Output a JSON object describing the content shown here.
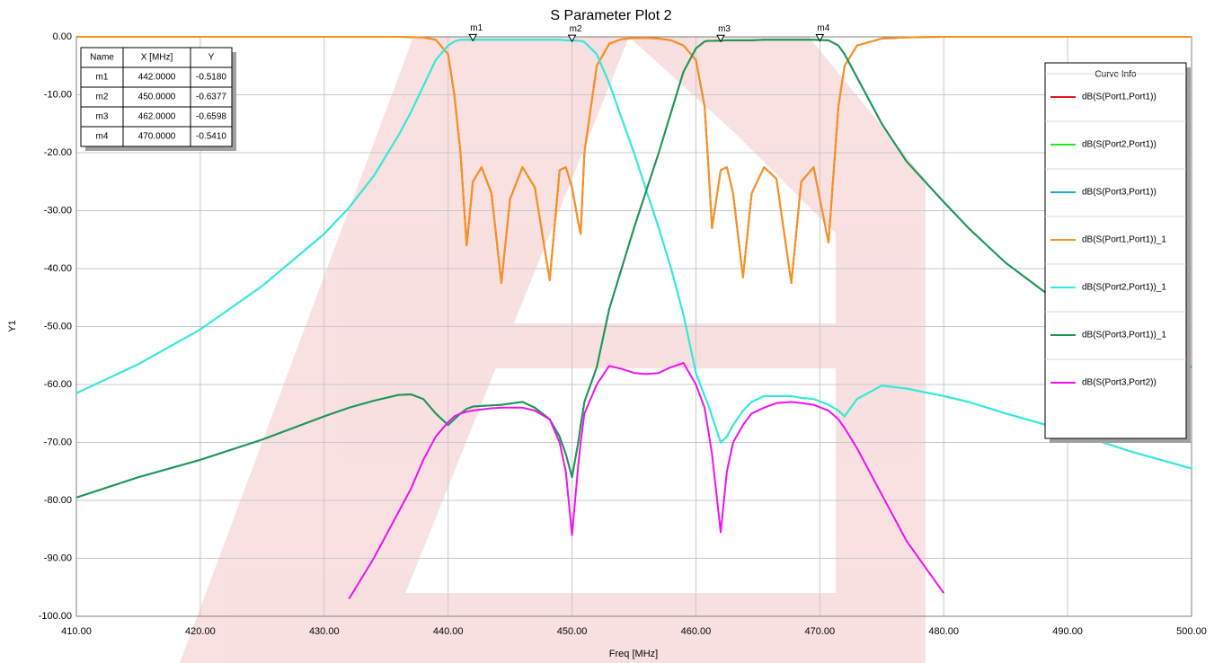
{
  "chart_data": {
    "type": "line",
    "title": "S Parameter Plot 2",
    "x_label": "Freq [MHz]",
    "y_label": "Y1",
    "xlim": [
      410,
      500
    ],
    "ylim": [
      -100,
      0
    ],
    "xticks": [
      {
        "value": 410,
        "label": "410.00"
      },
      {
        "value": 420,
        "label": "420.00"
      },
      {
        "value": 430,
        "label": "430.00"
      },
      {
        "value": 440,
        "label": "440.00"
      },
      {
        "value": 450,
        "label": "450.00"
      },
      {
        "value": 460,
        "label": "460.00"
      },
      {
        "value": 470,
        "label": "470.00"
      },
      {
        "value": 480,
        "label": "480.00"
      },
      {
        "value": 490,
        "label": "490.00"
      },
      {
        "value": 500,
        "label": "500.00"
      }
    ],
    "yticks": [
      {
        "value": 0,
        "label": "0.00"
      },
      {
        "value": -10,
        "label": "-10.00"
      },
      {
        "value": -20,
        "label": "-20.00"
      },
      {
        "value": -30,
        "label": "-30.00"
      },
      {
        "value": -40,
        "label": "-40.00"
      },
      {
        "value": -50,
        "label": "-50.00"
      },
      {
        "value": -60,
        "label": "-60.00"
      },
      {
        "value": -70,
        "label": "-70.00"
      },
      {
        "value": -80,
        "label": "-80.00"
      },
      {
        "value": -90,
        "label": "-90.00"
      },
      {
        "value": -100,
        "label": "-100.00"
      }
    ],
    "grid": true,
    "legend_title": "Curve Info",
    "legend_position": "right",
    "x": [
      410,
      415,
      420,
      425,
      430,
      432,
      434,
      436,
      437,
      438,
      439,
      440,
      440.5,
      441,
      441.5,
      442,
      442.7,
      443.5,
      444.3,
      445,
      446,
      447,
      448.2,
      449,
      449.5,
      450,
      450.5,
      450.7,
      451,
      452,
      453,
      454,
      455,
      456,
      457,
      458,
      459,
      460,
      460.7,
      461,
      461.3,
      462,
      462.5,
      463,
      463.8,
      464.5,
      465.5,
      466.5,
      467.7,
      468.5,
      469.5,
      470.7,
      471.5,
      472,
      473,
      475,
      477,
      480,
      482,
      485,
      490,
      495,
      500
    ],
    "series": [
      {
        "name": "dB(S(Port1,Port1))",
        "color": "#e8141c",
        "values": [
          0,
          0,
          0,
          0,
          0,
          0,
          0,
          0,
          -0.05,
          -0.1,
          -0.5,
          -3,
          -10,
          -20,
          -36,
          -25,
          -22.5,
          -27,
          -42.5,
          -28,
          -22.5,
          -26,
          -42,
          -23,
          -22.5,
          -26,
          -32,
          -34,
          -20,
          -5,
          -1.2,
          -0.4,
          -0.2,
          -0.2,
          -0.3,
          -0.6,
          -1.5,
          -4,
          -12,
          -22,
          -33,
          -23,
          -22.5,
          -27,
          -41.5,
          -27,
          -22.5,
          -24.5,
          -42.5,
          -25,
          -22.5,
          -35.5,
          -12,
          -5,
          -1.5,
          -0.3,
          -0.1,
          0,
          0,
          0,
          0,
          0,
          0
        ]
      },
      {
        "name": "dB(S(Port2,Port1))",
        "color": "#22e822",
        "values": [
          -61.5,
          -56.5,
          -50.5,
          -43,
          -34,
          -29.5,
          -24,
          -17,
          -13,
          -8.5,
          -4,
          -1.5,
          -0.8,
          -0.5,
          -0.5,
          -0.5,
          -0.5,
          -0.5,
          -0.5,
          -0.5,
          -0.5,
          -0.5,
          -0.5,
          -0.5,
          -0.6,
          -0.6,
          -0.7,
          -0.7,
          -0.9,
          -3,
          -8,
          -14,
          -20,
          -26.5,
          -33,
          -40,
          -48,
          -58,
          -62,
          -63.5,
          -65.5,
          -70,
          -69,
          -67,
          -64.5,
          -63,
          -62,
          -62,
          -62,
          -62.3,
          -62.5,
          -63.5,
          -64.5,
          -65.5,
          -62.5,
          -60.2,
          -60.7,
          -62,
          -63,
          -65,
          -68,
          -71.5,
          -74.5
        ]
      },
      {
        "name": "dB(S(Port3,Port1))",
        "color": "#20a8d0",
        "values": [
          -79.5,
          -76,
          -73,
          -69.5,
          -65.5,
          -64,
          -62.8,
          -61.8,
          -61.7,
          -62.5,
          -65,
          -67,
          -66,
          -65,
          -64.2,
          -63.8,
          -63.7,
          -63.6,
          -63.5,
          -63.3,
          -63,
          -64,
          -66,
          -69,
          -72,
          -76,
          -70,
          -67,
          -63,
          -57,
          -47,
          -40,
          -33,
          -26.5,
          -20,
          -13,
          -6,
          -2,
          -0.8,
          -0.7,
          -0.7,
          -0.66,
          -0.6,
          -0.6,
          -0.6,
          -0.6,
          -0.5,
          -0.5,
          -0.5,
          -0.5,
          -0.5,
          -0.6,
          -1.5,
          -3,
          -7,
          -15,
          -21.5,
          -28.5,
          -33,
          -39,
          -47,
          -53,
          -57
        ]
      },
      {
        "name": "dB(S(Port1,Port1))_1",
        "color": "#f7941e",
        "values": [
          0,
          0,
          0,
          0,
          0,
          0,
          0,
          0,
          -0.05,
          -0.1,
          -0.5,
          -3,
          -10,
          -20,
          -36,
          -25,
          -22.5,
          -27,
          -42.5,
          -28,
          -22.5,
          -26,
          -42,
          -23,
          -22.5,
          -26,
          -32,
          -34,
          -20,
          -5,
          -1.2,
          -0.4,
          -0.2,
          -0.2,
          -0.3,
          -0.6,
          -1.5,
          -4,
          -12,
          -22,
          -33,
          -23,
          -22.5,
          -27,
          -41.5,
          -27,
          -22.5,
          -24.5,
          -42.5,
          -25,
          -22.5,
          -35.5,
          -12,
          -5,
          -1.5,
          -0.3,
          -0.1,
          0,
          0,
          0,
          0,
          0,
          0
        ]
      },
      {
        "name": "dB(S(Port2,Port1))_1",
        "color": "#33e8e8",
        "values": [
          -61.5,
          -56.5,
          -50.5,
          -43,
          -34,
          -29.5,
          -24,
          -17,
          -13,
          -8.5,
          -4,
          -1.5,
          -0.8,
          -0.5,
          -0.5,
          -0.5,
          -0.5,
          -0.5,
          -0.5,
          -0.5,
          -0.5,
          -0.5,
          -0.5,
          -0.5,
          -0.6,
          -0.6,
          -0.7,
          -0.7,
          -0.9,
          -3,
          -8,
          -14,
          -20,
          -26.5,
          -33,
          -40,
          -48,
          -58,
          -62,
          -63.5,
          -65.5,
          -70,
          -69,
          -67,
          -64.5,
          -63,
          -62,
          -62,
          -62,
          -62.3,
          -62.5,
          -63.5,
          -64.5,
          -65.5,
          -62.5,
          -60.2,
          -60.7,
          -62,
          -63,
          -65,
          -68,
          -71.5,
          -74.5
        ]
      },
      {
        "name": "dB(S(Port3,Port1))_1",
        "color": "#1e9650",
        "values": [
          -79.5,
          -76,
          -73,
          -69.5,
          -65.5,
          -64,
          -62.8,
          -61.8,
          -61.7,
          -62.5,
          -65,
          -67,
          -66,
          -65,
          -64.2,
          -63.8,
          -63.7,
          -63.6,
          -63.5,
          -63.3,
          -63,
          -64,
          -66,
          -69,
          -72,
          -76,
          -70,
          -67,
          -63,
          -57,
          -47,
          -40,
          -33,
          -26.5,
          -20,
          -13,
          -6,
          -2,
          -0.8,
          -0.7,
          -0.7,
          -0.66,
          -0.6,
          -0.6,
          -0.6,
          -0.6,
          -0.5,
          -0.5,
          -0.5,
          -0.5,
          -0.5,
          -0.6,
          -1.5,
          -3,
          -7,
          -15,
          -21.5,
          -28.5,
          -33,
          -39,
          -47,
          -53,
          -57
        ]
      },
      {
        "name": "dB(S(Port3,Port2))",
        "color": "#f010f0",
        "values": [
          null,
          null,
          null,
          null,
          null,
          -97,
          -90,
          -82,
          -78,
          -73,
          -69,
          -66.5,
          -65.5,
          -65,
          -64.7,
          -64.5,
          -64.3,
          -64.1,
          -64,
          -64,
          -64,
          -64.5,
          -66,
          -70,
          -75,
          -86,
          -74,
          -70,
          -65,
          -60,
          -56.8,
          -57.3,
          -58,
          -58.2,
          -58,
          -57,
          -56.3,
          -60,
          -64,
          -68,
          -72,
          -85.5,
          -75,
          -70,
          -67,
          -65,
          -64,
          -63.2,
          -63,
          -63.2,
          -63.5,
          -64.5,
          -66,
          -67.5,
          -71,
          -79,
          -87,
          -96,
          null,
          null,
          null,
          null,
          null
        ]
      }
    ],
    "marker_table_columns": [
      "Name",
      "X [MHz]",
      "Y"
    ],
    "markers": [
      {
        "name": "m1",
        "x": {
          "value": 442,
          "label": "442.0000"
        },
        "y": {
          "value": -0.518,
          "label": "-0.5180"
        }
      },
      {
        "name": "m2",
        "x": {
          "value": 450,
          "label": "450.0000"
        },
        "y": {
          "value": -0.6377,
          "label": "-0.6377"
        }
      },
      {
        "name": "m3",
        "x": {
          "value": 462,
          "label": "462.0000"
        },
        "y": {
          "value": -0.6598,
          "label": "-0.6598"
        }
      },
      {
        "name": "m4",
        "x": {
          "value": 470,
          "label": "470.0000"
        },
        "y": {
          "value": -0.541,
          "label": "-0.5410"
        }
      }
    ]
  }
}
